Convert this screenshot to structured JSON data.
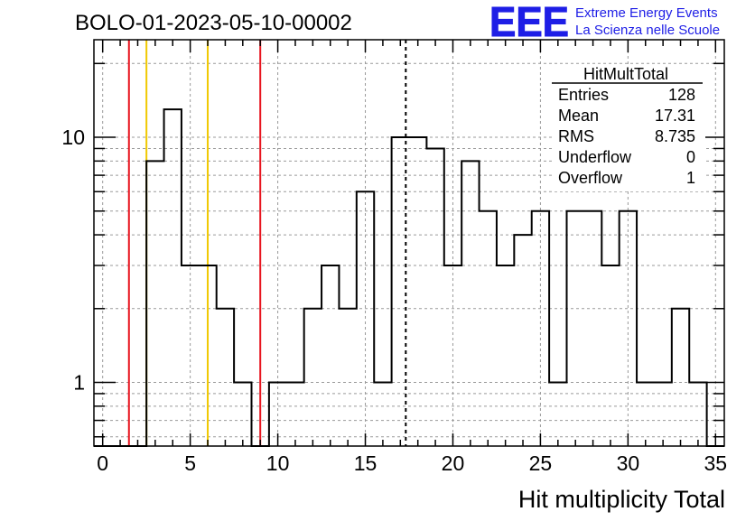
{
  "chart_data": {
    "type": "bar",
    "title": "BOLO-01-2023-05-10-00002",
    "xlabel": "Hit multiplicity Total",
    "ylabel": "",
    "xlim": [
      -0.5,
      35.5
    ],
    "ylim": [
      0.55,
      25
    ],
    "yscale": "log",
    "grid": true,
    "bin_width": 1,
    "bin_centers": [
      0,
      1,
      2,
      3,
      4,
      5,
      6,
      7,
      8,
      9,
      10,
      11,
      12,
      13,
      14,
      15,
      16,
      17,
      18,
      19,
      20,
      21,
      22,
      23,
      24,
      25,
      26,
      27,
      28,
      29,
      30,
      31,
      32,
      33,
      34,
      35
    ],
    "values": [
      0,
      0,
      0,
      8,
      13,
      3,
      3,
      2,
      1,
      0,
      1,
      1,
      2,
      3,
      2,
      6,
      1,
      10,
      10,
      9,
      3,
      8,
      5,
      3,
      4,
      5,
      1,
      5,
      5,
      3,
      5,
      1,
      1,
      2,
      1,
      0
    ],
    "x_ticks": [
      "0",
      "5",
      "10",
      "15",
      "20",
      "25",
      "30",
      "35"
    ],
    "y_ticks": [
      "1",
      "10"
    ],
    "markers": [
      {
        "x": 1.5,
        "color": "#e8141e",
        "style": "solid"
      },
      {
        "x": 2.5,
        "color": "#f0c800",
        "style": "solid"
      },
      {
        "x": 6.0,
        "color": "#f0c800",
        "style": "solid"
      },
      {
        "x": 9.0,
        "color": "#e8141e",
        "style": "solid"
      },
      {
        "x": 17.31,
        "color": "#000000",
        "style": "dashed"
      }
    ],
    "stats_box": {
      "title": "HitMultTotal",
      "rows": [
        {
          "label": "Entries",
          "value": "128"
        },
        {
          "label": "Mean",
          "value": "17.31"
        },
        {
          "label": "RMS",
          "value": "8.735"
        },
        {
          "label": "Underflow",
          "value": "0"
        },
        {
          "label": "Overflow",
          "value": "1"
        }
      ]
    }
  },
  "logo": {
    "text": "EEE",
    "line1": "Extreme Energy Events",
    "line2": "La Scienza nelle Scuole",
    "color": "#1e1ee6"
  }
}
